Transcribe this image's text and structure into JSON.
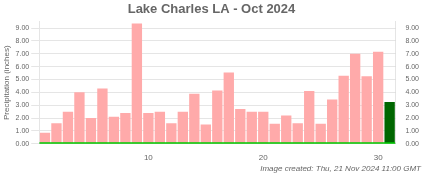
{
  "chart_data": {
    "type": "bar",
    "title": "Lake Charles LA - Oct 2024",
    "ylabel": "Precipitation (inches)",
    "annotation": "Image created: Thu, 21 Nov 2024 11:00 GMT",
    "categories": [
      null,
      null,
      null,
      null,
      null,
      null,
      null,
      null,
      null,
      "10",
      null,
      null,
      null,
      null,
      null,
      null,
      null,
      null,
      null,
      "20",
      null,
      null,
      null,
      null,
      null,
      null,
      null,
      null,
      null,
      "30",
      null
    ],
    "values": [
      0.85,
      1.6,
      2.5,
      4.0,
      2.0,
      4.3,
      2.1,
      2.4,
      9.35,
      2.4,
      2.5,
      1.6,
      2.5,
      3.9,
      1.5,
      4.15,
      5.55,
      2.7,
      2.5,
      2.5,
      1.55,
      2.2,
      1.6,
      4.1,
      1.55,
      3.45,
      5.3,
      7.0,
      5.25,
      7.15,
      3.25
    ],
    "colors": [
      "#ffaaaa",
      "#ffaaaa",
      "#ffaaaa",
      "#ffaaaa",
      "#ffaaaa",
      "#ffaaaa",
      "#ffaaaa",
      "#ffaaaa",
      "#ffaaaa",
      "#ffaaaa",
      "#ffaaaa",
      "#ffaaaa",
      "#ffaaaa",
      "#ffaaaa",
      "#ffaaaa",
      "#ffaaaa",
      "#ffaaaa",
      "#ffaaaa",
      "#ffaaaa",
      "#ffaaaa",
      "#ffaaaa",
      "#ffaaaa",
      "#ffaaaa",
      "#ffaaaa",
      "#ffaaaa",
      "#ffaaaa",
      "#ffaaaa",
      "#ffaaaa",
      "#ffaaaa",
      "#ffaaaa",
      "#006600"
    ],
    "reference_line": {
      "value": 0.05,
      "color": "#00cc00"
    },
    "ylim": [
      0.0,
      9.5
    ],
    "yticks": [
      {
        "value": 0.0,
        "label": "0.00"
      },
      {
        "value": 1.0,
        "label": "1.00"
      },
      {
        "value": 2.0,
        "label": "2.00"
      },
      {
        "value": 3.0,
        "label": "3.00"
      },
      {
        "value": 4.0,
        "label": "4.00"
      },
      {
        "value": 5.0,
        "label": "5.00"
      },
      {
        "value": 6.0,
        "label": "6.00"
      },
      {
        "value": 7.0,
        "label": "7.00"
      },
      {
        "value": 8.0,
        "label": "8.00"
      },
      {
        "value": 9.0,
        "label": "9.00"
      }
    ],
    "y2lim": [
      0.0,
      9.5
    ],
    "y2ticks": [
      {
        "value": 0.0,
        "label": "0.00"
      },
      {
        "value": 1.0,
        "label": "1.00"
      },
      {
        "value": 2.0,
        "label": "2.00"
      },
      {
        "value": 3.0,
        "label": "3.00"
      },
      {
        "value": 4.0,
        "label": "4.00"
      },
      {
        "value": 5.0,
        "label": "5.00"
      },
      {
        "value": 6.0,
        "label": "6.00"
      },
      {
        "value": 7.0,
        "label": "7.00"
      },
      {
        "value": 8.0,
        "label": "8.00"
      },
      {
        "value": 9.0,
        "label": "9.00"
      }
    ],
    "grid": true
  }
}
